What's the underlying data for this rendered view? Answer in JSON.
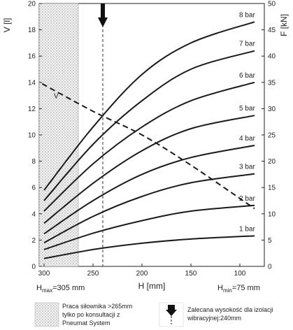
{
  "chart_data": {
    "type": "line",
    "xlabel": "H [mm]",
    "y_left_label": "V [l]",
    "y_right_label": "F [kN]",
    "x_range": [
      305,
      75
    ],
    "x_reversed": true,
    "x_ticks": [
      300,
      250,
      200,
      150,
      100
    ],
    "y_left_range": [
      0,
      20
    ],
    "y_left_ticks": [
      0,
      2,
      4,
      6,
      8,
      10,
      12,
      14,
      16,
      18,
      20
    ],
    "y_right_range": [
      0,
      50
    ],
    "y_right_ticks": [
      0,
      5,
      10,
      15,
      20,
      25,
      30,
      35,
      40,
      45,
      50
    ],
    "grid": false,
    "force_series": [
      {
        "name": "1 bar",
        "x": [
          300,
          250,
          200,
          150,
          85
        ],
        "y": [
          1.5,
          3.2,
          4.4,
          5.2,
          5.8
        ]
      },
      {
        "name": "2 bar",
        "x": [
          300,
          250,
          200,
          150,
          85
        ],
        "y": [
          3.2,
          6.3,
          8.7,
          10.5,
          11.6
        ]
      },
      {
        "name": "3 bar",
        "x": [
          300,
          250,
          200,
          150,
          85
        ],
        "y": [
          4.5,
          9.5,
          13.3,
          15.9,
          17.6
        ]
      },
      {
        "name": "4 bar",
        "x": [
          300,
          250,
          200,
          150,
          85
        ],
        "y": [
          6.2,
          12.5,
          17.5,
          20.7,
          23.0
        ]
      },
      {
        "name": "5 bar",
        "x": [
          300,
          250,
          200,
          150,
          85
        ],
        "y": [
          8.2,
          15.8,
          22.0,
          26.2,
          28.7
        ]
      },
      {
        "name": "6 bar",
        "x": [
          300,
          250,
          200,
          150,
          85
        ],
        "y": [
          10.5,
          19.5,
          26.5,
          31.5,
          35.0
        ]
      },
      {
        "name": "7 bar",
        "x": [
          300,
          250,
          200,
          150,
          85
        ],
        "y": [
          12.5,
          23.2,
          31.5,
          37.5,
          41.0
        ]
      },
      {
        "name": "8 bar",
        "x": [
          300,
          250,
          200,
          150,
          85
        ],
        "y": [
          14.5,
          26.5,
          36.5,
          42.5,
          46.5
        ]
      }
    ],
    "volume_series": {
      "name": "V",
      "x": [
        302,
        250,
        200,
        150,
        85
      ],
      "y": [
        13.9,
        11.8,
        10.0,
        7.7,
        4.4
      ]
    },
    "shaded_region_x": [
      305,
      265
    ],
    "recommended_height_mm": 240,
    "h_max_label": "H",
    "h_max_sub": "max",
    "h_max_value": "=305 mm",
    "h_min_label": "H",
    "h_min_sub": "min",
    "h_min_value": "=75 mm"
  },
  "legend": {
    "hatched_text": [
      "Praca siłownika >265mm",
      "tylko po konsultacji z",
      "Pneumat System"
    ],
    "arrow_text": [
      "Zalecana wysokość dla izolacji",
      "wibracyjnej:240mm"
    ]
  },
  "colors": {
    "line": "#1a1a1a",
    "hatch": "#bdbdbd"
  }
}
